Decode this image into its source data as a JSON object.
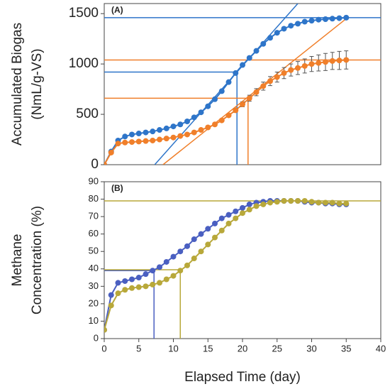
{
  "chart_data": [
    {
      "type": "line",
      "label": "(A)",
      "ylabel": [
        "Accumulated Biogas",
        "(NmL/g-VS)"
      ],
      "xlim": [
        0,
        40
      ],
      "ylim": [
        0,
        1600
      ],
      "yticks": [
        0,
        500,
        1000,
        1500
      ],
      "x": [
        0,
        1,
        2,
        3,
        4,
        5,
        6,
        7,
        8,
        9,
        10,
        11,
        12,
        13,
        14,
        15,
        16,
        17,
        18,
        19,
        20,
        21,
        22,
        23,
        24,
        25,
        26,
        27,
        28,
        29,
        30,
        31,
        32,
        33,
        34,
        35
      ],
      "series": [
        {
          "color": "#2e75c9",
          "values": [
            0,
            130,
            240,
            280,
            300,
            310,
            320,
            330,
            345,
            360,
            380,
            400,
            430,
            470,
            520,
            580,
            650,
            730,
            820,
            910,
            990,
            1060,
            1130,
            1200,
            1260,
            1310,
            1350,
            1380,
            1400,
            1420,
            1430,
            1440,
            1445,
            1450,
            1455,
            1460
          ]
        },
        {
          "color": "#f07f2a",
          "values": [
            0,
            120,
            210,
            220,
            225,
            230,
            235,
            240,
            250,
            260,
            270,
            285,
            300,
            320,
            345,
            370,
            400,
            440,
            490,
            540,
            600,
            660,
            720,
            780,
            830,
            870,
            910,
            940,
            960,
            980,
            1000,
            1010,
            1020,
            1030,
            1035,
            1040
          ],
          "errors": [
            null,
            null,
            null,
            null,
            null,
            null,
            null,
            null,
            null,
            null,
            null,
            null,
            null,
            null,
            null,
            null,
            null,
            null,
            null,
            20,
            25,
            30,
            35,
            40,
            45,
            50,
            55,
            60,
            65,
            70,
            75,
            80,
            85,
            85,
            90,
            90
          ]
        }
      ],
      "hlines": [
        {
          "value": 1460,
          "color": "#2e75c9"
        },
        {
          "value": 1040,
          "color": "#f07f2a"
        }
      ],
      "guides": [
        {
          "x": 19.2,
          "y": 920,
          "color": "#2e75c9"
        },
        {
          "x": 20.8,
          "y": 660,
          "color": "#f07f2a"
        }
      ],
      "tangents": [
        {
          "x": [
            7.3,
            28
          ],
          "y": [
            0,
            1600
          ],
          "color": "#2e75c9"
        },
        {
          "x": [
            8.5,
            35
          ],
          "y": [
            0,
            1450
          ],
          "color": "#f07f2a"
        }
      ]
    },
    {
      "type": "line",
      "label": "(B)",
      "ylabel": [
        "Methane",
        "Concentration (%)"
      ],
      "xlabel": "Elapsed Time (day)",
      "xlim": [
        0,
        40
      ],
      "xticks": [
        0,
        5,
        10,
        15,
        20,
        25,
        30,
        35,
        40
      ],
      "ylim": [
        0,
        90
      ],
      "yticks": [
        0,
        10,
        20,
        30,
        40,
        50,
        60,
        70,
        80,
        90
      ],
      "x": [
        0,
        1,
        2,
        3,
        4,
        5,
        6,
        7,
        8,
        9,
        10,
        11,
        12,
        13,
        14,
        15,
        16,
        17,
        18,
        19,
        20,
        21,
        22,
        23,
        24,
        25,
        26,
        27,
        28,
        29,
        30,
        31,
        32,
        33,
        34,
        35
      ],
      "series": [
        {
          "color": "#4a5fc1",
          "values": [
            5,
            25,
            32,
            33,
            34,
            35,
            37,
            39,
            41,
            44,
            47,
            50,
            53,
            57,
            60,
            63,
            66,
            69,
            71,
            73,
            75,
            77,
            78,
            78.5,
            79,
            79,
            79,
            79,
            79,
            78.5,
            78,
            78,
            77.5,
            77.5,
            77,
            77
          ]
        },
        {
          "color": "#b8a83a",
          "values": [
            5,
            19,
            26,
            28,
            29,
            29.5,
            30,
            31,
            32,
            34,
            36,
            39,
            42,
            46,
            50,
            54,
            58,
            62,
            66,
            69,
            72,
            74,
            76,
            77,
            78,
            78.5,
            79,
            79,
            79,
            79,
            78.5,
            78,
            78,
            78,
            77.5,
            77.5
          ]
        }
      ],
      "hlines": [
        {
          "value": 79,
          "color": "#b8a83a"
        }
      ],
      "guides": [
        {
          "x": 7.2,
          "y": 39,
          "color": "#4a5fc1"
        },
        {
          "x": 11,
          "y": 39.5,
          "color": "#b8a83a"
        }
      ]
    }
  ]
}
